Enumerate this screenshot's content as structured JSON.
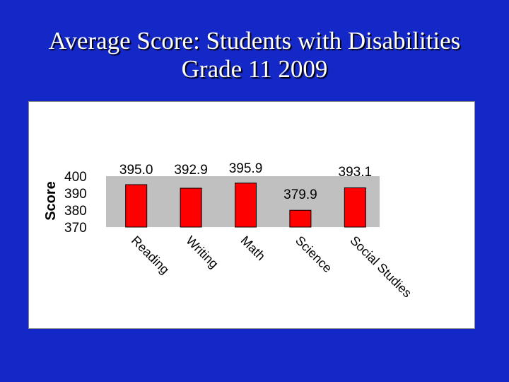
{
  "title": {
    "line1": "Average Score: Students with Disabilities",
    "line2": "Grade 11 2009"
  },
  "colors": {
    "background": "#1428c8",
    "panel": "#ffffff",
    "plot_area": "#c0c0c0",
    "bar": "#ff0000",
    "text": "#000000"
  },
  "chart_data": {
    "type": "bar",
    "title": "Average Score: Students with Disabilities Grade 11 2009",
    "xlabel": "",
    "ylabel": "Score",
    "categories": [
      "Reading",
      "Writing",
      "Math",
      "Science",
      "Social Studies"
    ],
    "values": [
      395.0,
      392.9,
      395.9,
      379.9,
      393.1
    ],
    "value_labels": [
      "395.0",
      "392.9",
      "395.9",
      "379.9",
      "393.1"
    ],
    "ylim": [
      370,
      400
    ],
    "yticks": [
      400,
      390,
      380,
      370
    ],
    "grid": false,
    "legend": "none"
  }
}
